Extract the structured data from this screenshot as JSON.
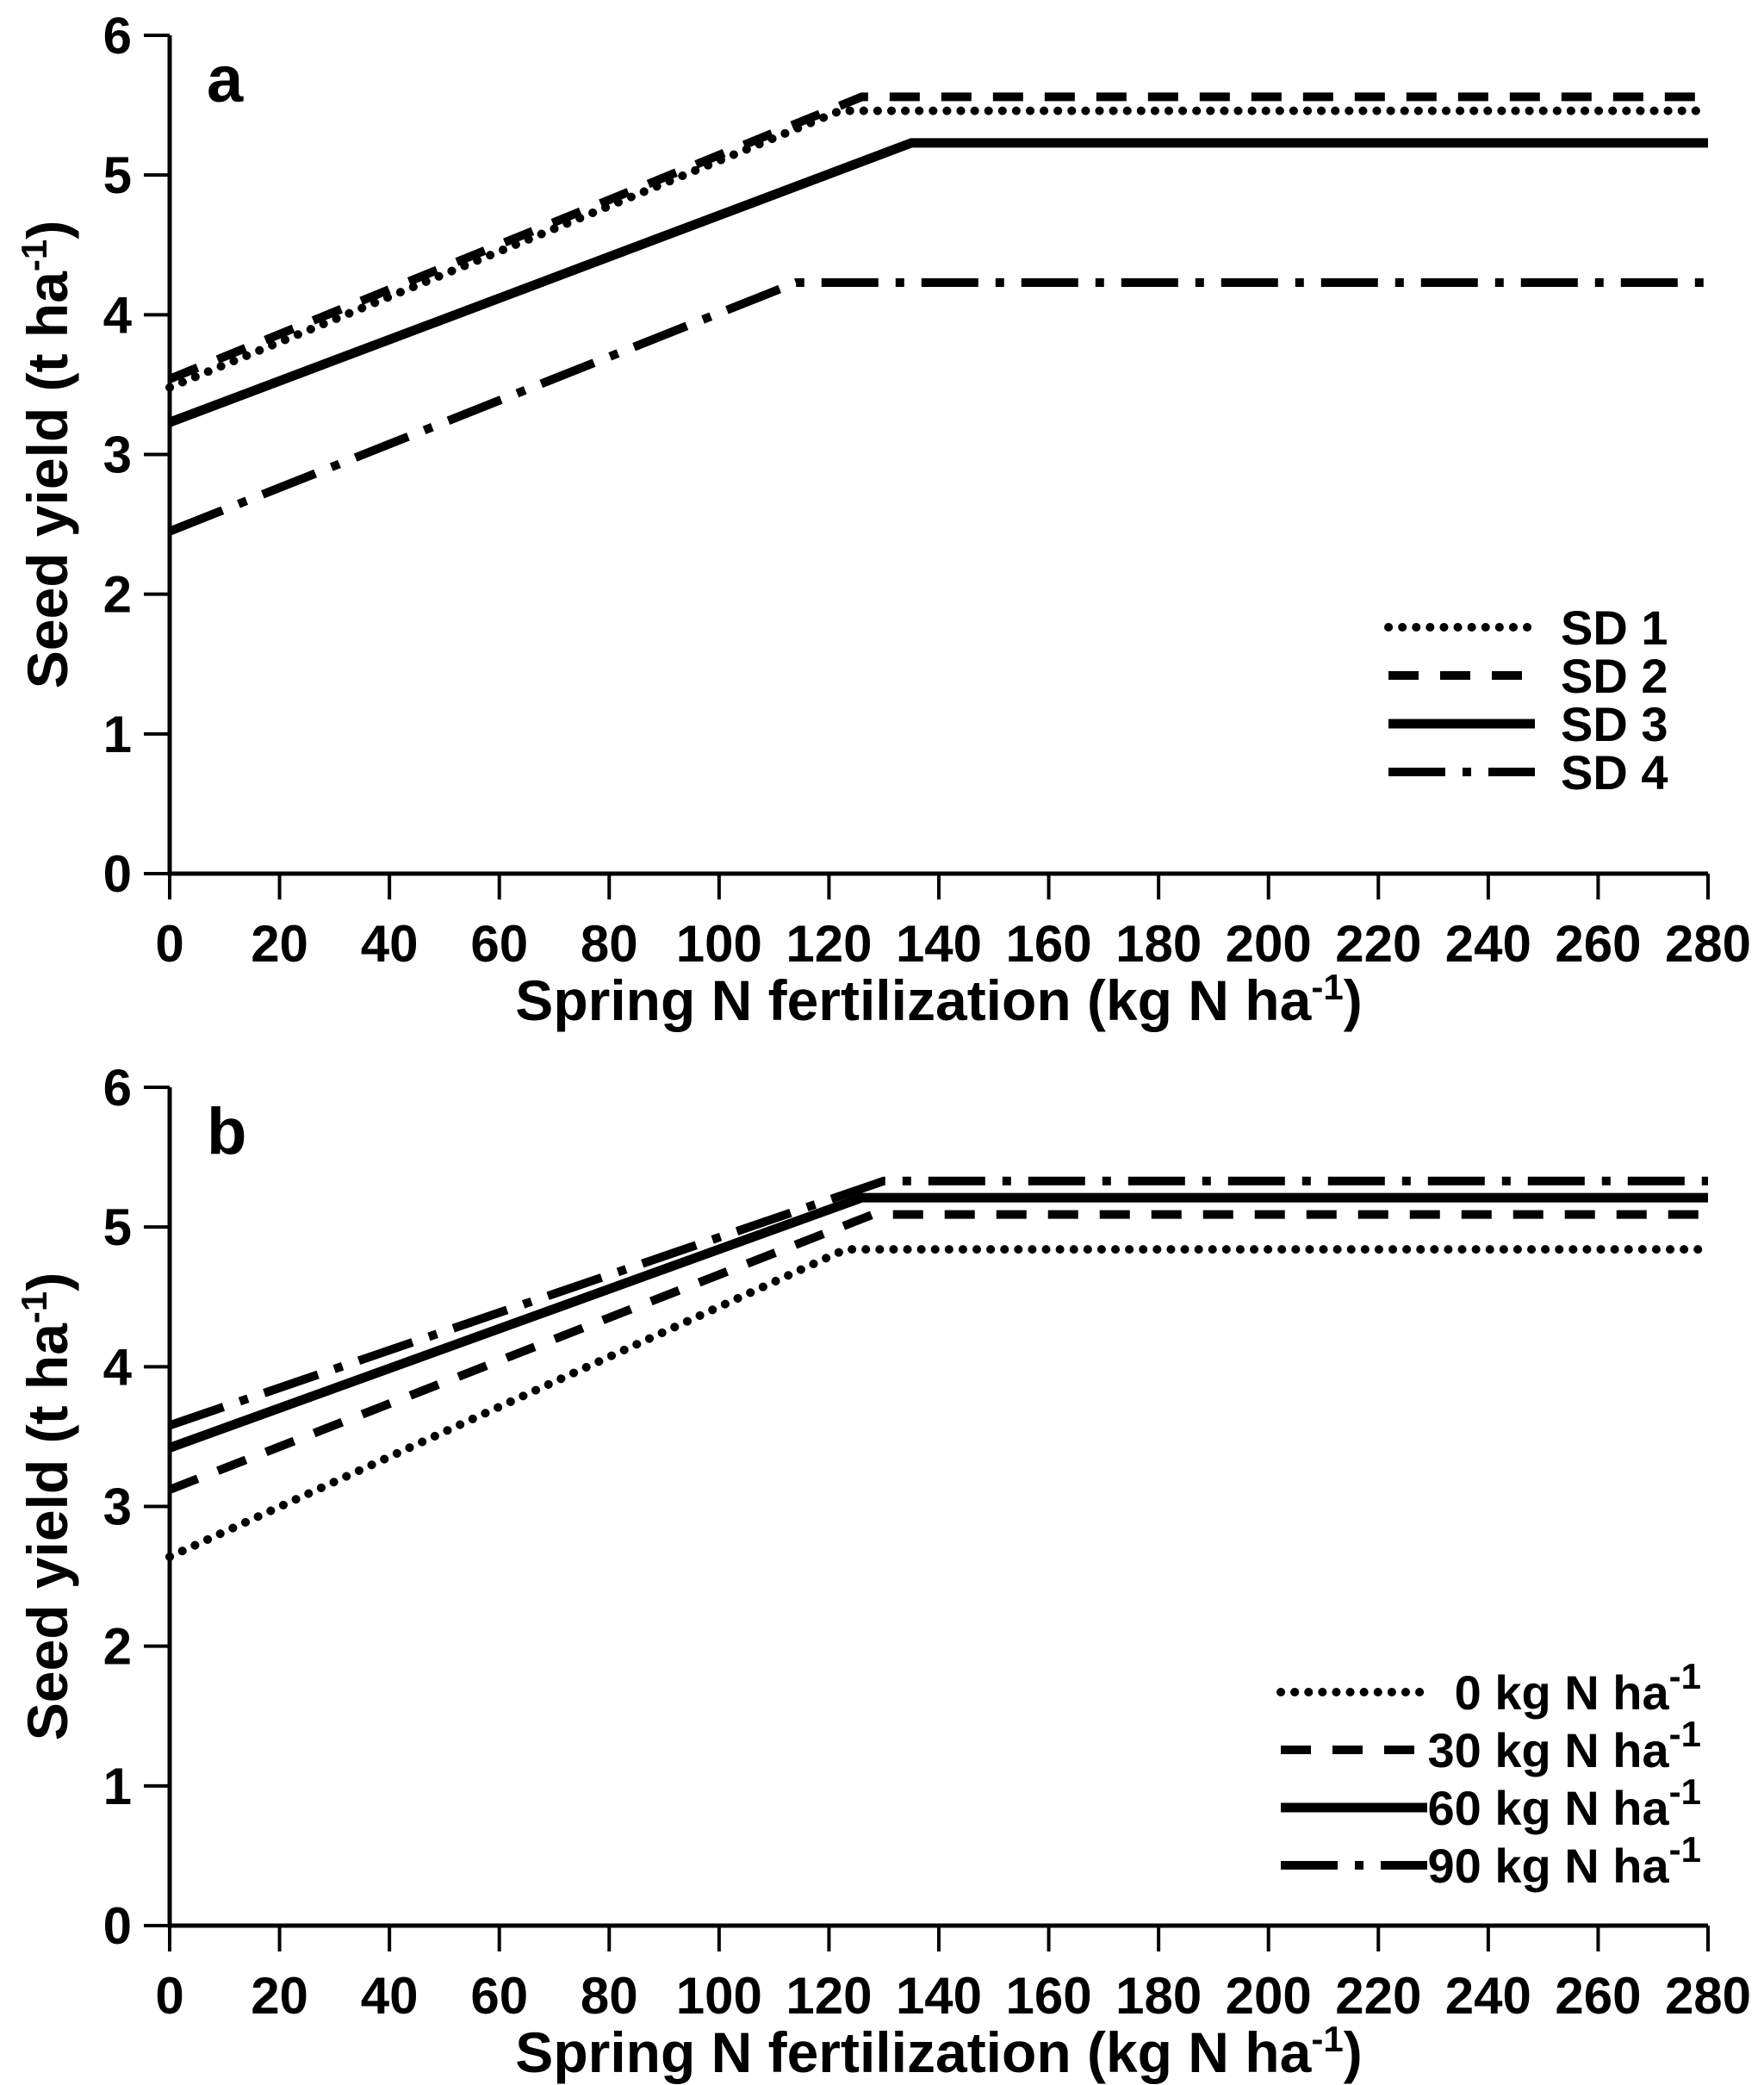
{
  "figure": {
    "background": "#ffffff",
    "ink": "#000000",
    "description": "Two-panel line figure: seed yield response to spring N fertilization, linear-plateau models"
  },
  "chart_data": [
    {
      "type": "line",
      "panel_label": "a",
      "xlabel": "Spring N fertilization (kg N ha⁻¹)",
      "ylabel": "Seed yield (t ha⁻¹)",
      "xlim": [
        0,
        280
      ],
      "ylim": [
        0,
        6
      ],
      "xticks": [
        0,
        20,
        40,
        60,
        80,
        100,
        120,
        140,
        160,
        180,
        200,
        220,
        240,
        260,
        280
      ],
      "yticks": [
        0,
        1,
        2,
        3,
        4,
        5,
        6
      ],
      "grid": false,
      "legend_position": "right-middle",
      "series": [
        {
          "name": "SD 1",
          "line_style": "dotted",
          "points": [
            [
              0,
              3.48
            ],
            [
              122,
              5.46
            ],
            [
              280,
              5.46
            ]
          ]
        },
        {
          "name": "SD 2",
          "line_style": "dashed",
          "points": [
            [
              0,
              3.54
            ],
            [
              126,
              5.56
            ],
            [
              280,
              5.56
            ]
          ]
        },
        {
          "name": "SD 3",
          "line_style": "solid",
          "points": [
            [
              0,
              3.23
            ],
            [
              135,
              5.23
            ],
            [
              280,
              5.23
            ]
          ]
        },
        {
          "name": "SD 4",
          "line_style": "dashdot",
          "points": [
            [
              0,
              2.45
            ],
            [
              114,
              4.23
            ],
            [
              280,
              4.23
            ]
          ]
        }
      ]
    },
    {
      "type": "line",
      "panel_label": "b",
      "xlabel": "Spring N fertilization (kg N ha⁻¹)",
      "ylabel": "Seed yield (t ha⁻¹)",
      "xlim": [
        0,
        280
      ],
      "ylim": [
        0,
        6
      ],
      "xticks": [
        0,
        20,
        40,
        60,
        80,
        100,
        120,
        140,
        160,
        180,
        200,
        220,
        240,
        260,
        280
      ],
      "yticks": [
        0,
        1,
        2,
        3,
        4,
        5,
        6
      ],
      "grid": false,
      "legend_position": "right-lower",
      "series": [
        {
          "name": "0 kg N ha⁻¹",
          "line_style": "dotted",
          "points": [
            [
              0,
              2.64
            ],
            [
              123,
              4.84
            ],
            [
              280,
              4.84
            ]
          ]
        },
        {
          "name": "30 kg N ha⁻¹",
          "line_style": "dashed",
          "points": [
            [
              0,
              3.12
            ],
            [
              128,
              5.09
            ],
            [
              280,
              5.09
            ]
          ]
        },
        {
          "name": "60 kg N ha⁻¹",
          "line_style": "solid",
          "points": [
            [
              0,
              3.42
            ],
            [
              126,
              5.21
            ],
            [
              280,
              5.21
            ]
          ]
        },
        {
          "name": "90 kg N ha⁻¹",
          "line_style": "dashdot",
          "points": [
            [
              0,
              3.58
            ],
            [
              130,
              5.33
            ],
            [
              280,
              5.33
            ]
          ]
        }
      ]
    }
  ]
}
